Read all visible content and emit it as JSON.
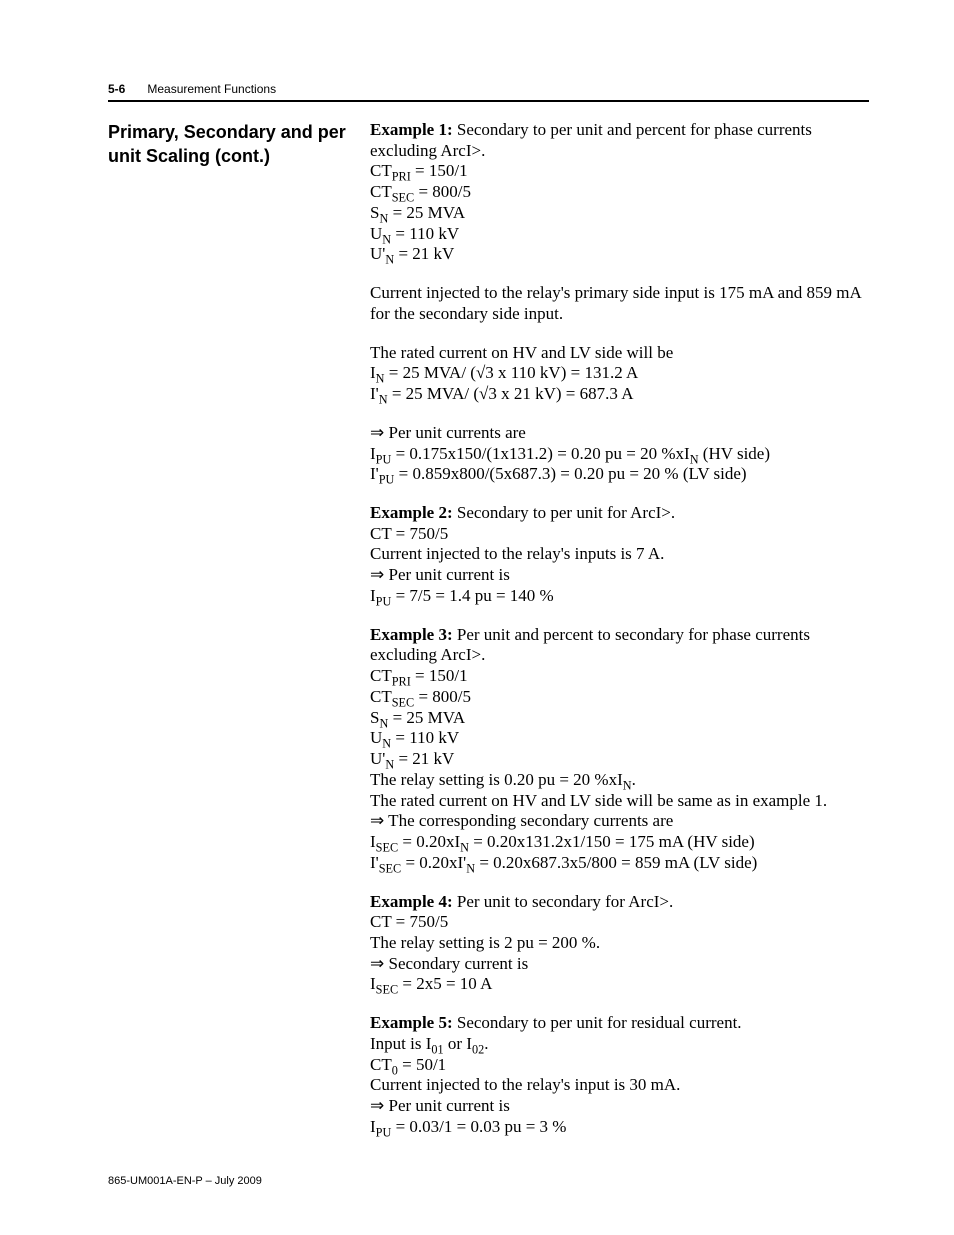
{
  "header": {
    "page_number": "5-6",
    "chapter_title": "Measurement Functions"
  },
  "section_heading": "Primary, Secondary and per unit Scaling (cont.)",
  "footer": "865-UM001A-EN-P – July 2009",
  "example1": {
    "title": "Example 1:",
    "desc": " Secondary to per unit and percent for phase currents excluding ArcI>.",
    "line1a": "CT",
    "line1b": " = 150/1",
    "sub1": "PRI",
    "line2a": "CT",
    "line2b": " = 800/5",
    "sub2": "SEC",
    "line3a": "S",
    "line3b": " = 25 MVA",
    "sub3": "N",
    "line4a": "U",
    "line4b": " = 110 kV",
    "sub4": "N",
    "line5a": "U'",
    "line5b": " = 21 kV",
    "sub5": "N",
    "para2": "Current injected to the relay's primary side input is 175 mA and 859 mA for the secondary side input.",
    "para3_intro": "The rated current on HV and LV side will be",
    "para3_l1a": "I",
    "para3_l1b": " = 25 MVA/ (√3 x 110 kV) = 131.2 A",
    "para3_sub1": "N",
    "para3_l2a": "I'",
    "para3_l2b": " = 25 MVA/ (√3 x 21 kV) = 687.3 A",
    "para3_sub2": "N",
    "para4_l1": "⇒ Per unit currents are",
    "para4_l2a": "I",
    "para4_l2sub": "PU",
    "para4_l2b": " = 0.175x150/(1x131.2) = 0.20 pu = 20 %xI",
    "para4_l2sub2": "N",
    "para4_l2c": " (HV side)",
    "para4_l3a": "I'",
    "para4_l3sub": "PU",
    "para4_l3b": " = 0.859x800/(5x687.3) = 0.20 pu = 20 % (LV side)"
  },
  "example2": {
    "title": "Example 2:",
    "desc": " Secondary to per unit for ArcI>.",
    "l1": "CT = 750/5",
    "l2": "Current injected to the relay's inputs is 7 A.",
    "l3": "⇒ Per unit current is",
    "l4a": "I",
    "l4sub": "PU",
    "l4b": " = 7/5 = 1.4 pu = 140 %"
  },
  "example3": {
    "title": "Example 3:",
    "desc": " Per unit and percent to secondary for phase currents excluding ArcI>.",
    "l1a": "CT",
    "l1sub": "PRI",
    "l1b": " = 150/1",
    "l2a": "CT",
    "l2sub": "SEC",
    "l2b": " = 800/5",
    "l3a": "S",
    "l3sub": "N",
    "l3b": " = 25 MVA",
    "l4a": "U",
    "l4sub": "N",
    "l4b": " = 110 kV",
    "l5a": "U'",
    "l5sub": "N",
    "l5b": " = 21 kV",
    "l6a": "The relay setting is 0.20 pu = 20 %xI",
    "l6sub": "N",
    "l6b": ".",
    "l7": "The rated current on HV and LV side will be same as in example 1.",
    "l8": "⇒ The corresponding secondary currents are",
    "l9a": "I",
    "l9sub": "SEC",
    "l9b": " = 0.20xI",
    "l9sub2": "N",
    "l9c": " = 0.20x131.2x1/150 = 175 mA (HV side)",
    "l10a": "I'",
    "l10sub": "SEC",
    "l10b": " = 0.20xI'",
    "l10sub2": "N",
    "l10c": " = 0.20x687.3x5/800 = 859 mA (LV side)"
  },
  "example4": {
    "title": "Example 4:",
    "desc": " Per unit to secondary for ArcI>.",
    "l1": "CT = 750/5",
    "l2": "The relay setting is 2 pu = 200 %.",
    "l3": "⇒ Secondary current is",
    "l4a": "I",
    "l4sub": "SEC",
    "l4b": " = 2x5 = 10 A"
  },
  "example5": {
    "title": "Example 5:",
    "desc": " Secondary to per unit for residual current.",
    "l1a": "Input is I",
    "l1sub1": "01",
    "l1b": " or I",
    "l1sub2": "02",
    "l1c": ".",
    "l2a": "CT",
    "l2sub": "0",
    "l2b": " = 50/1",
    "l3": "Current injected to the relay's input is 30 mA.",
    "l4": "⇒ Per unit current is",
    "l5a": "I",
    "l5sub": "PU",
    "l5b": " = 0.03/1 = 0.03 pu = 3 %"
  }
}
